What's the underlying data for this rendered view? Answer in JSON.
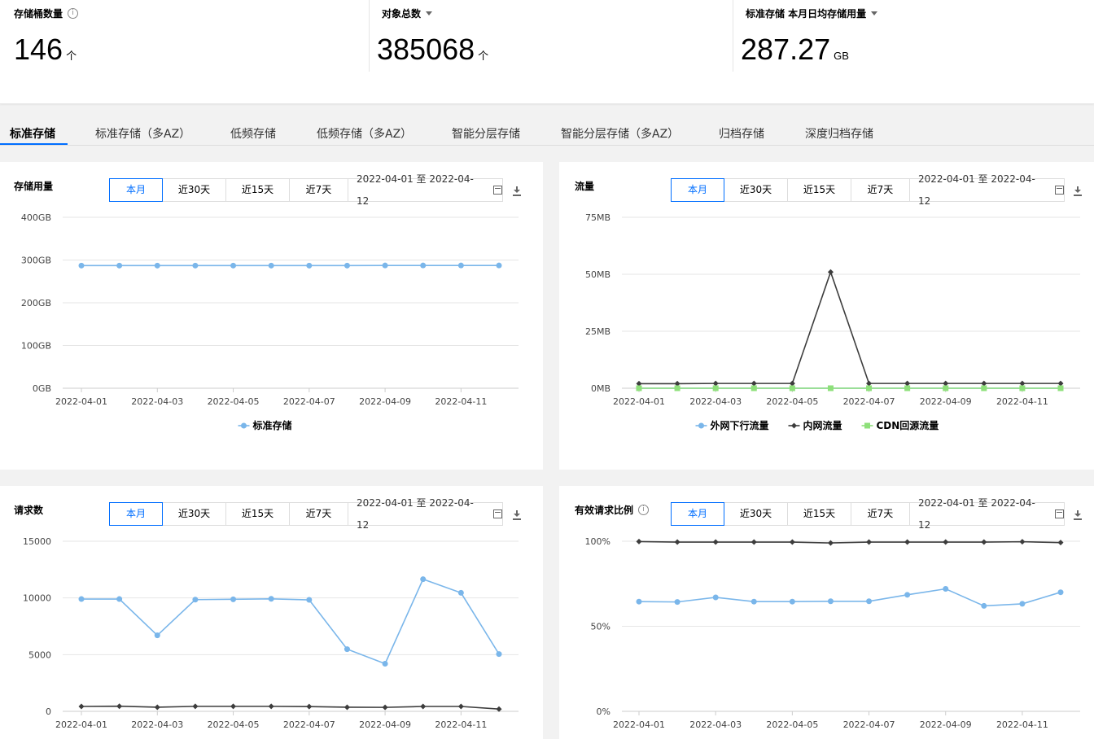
{
  "stats": [
    {
      "label": "存储桶数量",
      "value": "146",
      "unit": "个",
      "icon": "info-icon"
    },
    {
      "label": "对象总数",
      "value": "385068",
      "unit": "个",
      "icon": "chevron-down-icon"
    },
    {
      "label": "标准存储 本月日均存储用量",
      "value": "287.27",
      "unit": "GB",
      "icon": "chevron-down-icon"
    }
  ],
  "tabs": [
    "标准存储",
    "标准存储（多AZ）",
    "低频存储",
    "低频存储（多AZ）",
    "智能分层存储",
    "智能分层存储（多AZ）",
    "归档存储",
    "深度归档存储"
  ],
  "active_tab": "标准存储",
  "range_buttons": [
    "本月",
    "近30天",
    "近15天",
    "近7天"
  ],
  "date_range": "2022-04-01 至 2022-04-12",
  "colors": {
    "accent": "#006eff",
    "series_blue": "#7ab6ea",
    "series_dark": "#3d3d3d",
    "series_green": "#8ee07a"
  },
  "chart_data": [
    {
      "id": "storage",
      "type": "line",
      "title": "存储用量",
      "x": [
        "2022-04-01",
        "2022-04-02",
        "2022-04-03",
        "2022-04-04",
        "2022-04-05",
        "2022-04-06",
        "2022-04-07",
        "2022-04-08",
        "2022-04-09",
        "2022-04-10",
        "2022-04-11",
        "2022-04-12"
      ],
      "x_tick_labels": [
        "2022-04-01",
        "2022-04-03",
        "2022-04-05",
        "2022-04-07",
        "2022-04-09",
        "2022-04-11"
      ],
      "y_ticks": [
        0,
        100,
        200,
        300,
        400
      ],
      "y_tick_labels": [
        "0GB",
        "100GB",
        "200GB",
        "300GB",
        "400GB"
      ],
      "ylim": [
        0,
        400
      ],
      "series": [
        {
          "name": "标准存储",
          "marker": "circle",
          "color": "#7ab6ea",
          "values": [
            287,
            287,
            287,
            287,
            287,
            287,
            287,
            287,
            287.3,
            287.3,
            287.3,
            287.3
          ]
        }
      ],
      "legend": "bottom"
    },
    {
      "id": "traffic",
      "type": "line",
      "title": "流量",
      "x": [
        "2022-04-01",
        "2022-04-02",
        "2022-04-03",
        "2022-04-04",
        "2022-04-05",
        "2022-04-06",
        "2022-04-07",
        "2022-04-08",
        "2022-04-09",
        "2022-04-10",
        "2022-04-11",
        "2022-04-12"
      ],
      "x_tick_labels": [
        "2022-04-01",
        "2022-04-03",
        "2022-04-05",
        "2022-04-07",
        "2022-04-09",
        "2022-04-11"
      ],
      "y_ticks": [
        0,
        25,
        50,
        75
      ],
      "y_tick_labels": [
        "0MB",
        "25MB",
        "50MB",
        "75MB"
      ],
      "ylim": [
        0,
        75
      ],
      "series": [
        {
          "name": "外网下行流量",
          "marker": "circle",
          "color": "#7ab6ea",
          "values": [
            0,
            0,
            0,
            0,
            0,
            0,
            0,
            0,
            0,
            0,
            0,
            0
          ]
        },
        {
          "name": "内网流量",
          "marker": "diamond",
          "color": "#3d3d3d",
          "values": [
            2,
            2,
            2.1,
            2.1,
            2.1,
            51,
            2.1,
            2.1,
            2.1,
            2.1,
            2.1,
            2.1
          ]
        },
        {
          "name": "CDN回源流量",
          "marker": "square",
          "color": "#8ee07a",
          "values": [
            0,
            0,
            0,
            0,
            0,
            0,
            0,
            0,
            0,
            0,
            0,
            0
          ]
        }
      ],
      "legend": "bottom"
    },
    {
      "id": "requests",
      "type": "line",
      "title": "请求数",
      "x": [
        "2022-04-01",
        "2022-04-02",
        "2022-04-03",
        "2022-04-04",
        "2022-04-05",
        "2022-04-06",
        "2022-04-07",
        "2022-04-08",
        "2022-04-09",
        "2022-04-10",
        "2022-04-11",
        "2022-04-12"
      ],
      "x_tick_labels": [
        "2022-04-01",
        "2022-04-03",
        "2022-04-05",
        "2022-04-07",
        "2022-04-09",
        "2022-04-11"
      ],
      "y_ticks": [
        0,
        5000,
        10000,
        15000
      ],
      "y_tick_labels": [
        "0",
        "5000",
        "10000",
        "15000"
      ],
      "ylim": [
        0,
        15000
      ],
      "series": [
        {
          "name": "",
          "marker": "circle",
          "color": "#7ab6ea",
          "values": [
            9900,
            9900,
            6700,
            9850,
            9880,
            9920,
            9830,
            5480,
            4200,
            11650,
            10450,
            5050
          ]
        },
        {
          "name": "",
          "marker": "diamond",
          "color": "#3d3d3d",
          "values": [
            430,
            450,
            360,
            440,
            440,
            440,
            420,
            360,
            350,
            430,
            430,
            200
          ]
        }
      ]
    },
    {
      "id": "valid_ratio",
      "type": "line",
      "title": "有效请求比例",
      "x": [
        "2022-04-01",
        "2022-04-02",
        "2022-04-03",
        "2022-04-04",
        "2022-04-05",
        "2022-04-06",
        "2022-04-07",
        "2022-04-08",
        "2022-04-09",
        "2022-04-10",
        "2022-04-11",
        "2022-04-12"
      ],
      "x_tick_labels": [
        "2022-04-01",
        "2022-04-03",
        "2022-04-05",
        "2022-04-07",
        "2022-04-09",
        "2022-04-11"
      ],
      "y_ticks": [
        0,
        50,
        100
      ],
      "y_tick_labels": [
        "0%",
        "50%",
        "100%"
      ],
      "ylim": [
        0,
        100
      ],
      "series": [
        {
          "name": "",
          "marker": "diamond",
          "color": "#3d3d3d",
          "values": [
            99.8,
            99.5,
            99.5,
            99.5,
            99.5,
            99,
            99.5,
            99.5,
            99.5,
            99.5,
            99.7,
            99.2
          ]
        },
        {
          "name": "",
          "marker": "circle",
          "color": "#7ab6ea",
          "values": [
            64.5,
            64.3,
            67,
            64.5,
            64.5,
            64.7,
            64.7,
            68.5,
            72,
            62,
            63.2,
            70
          ]
        }
      ]
    }
  ]
}
